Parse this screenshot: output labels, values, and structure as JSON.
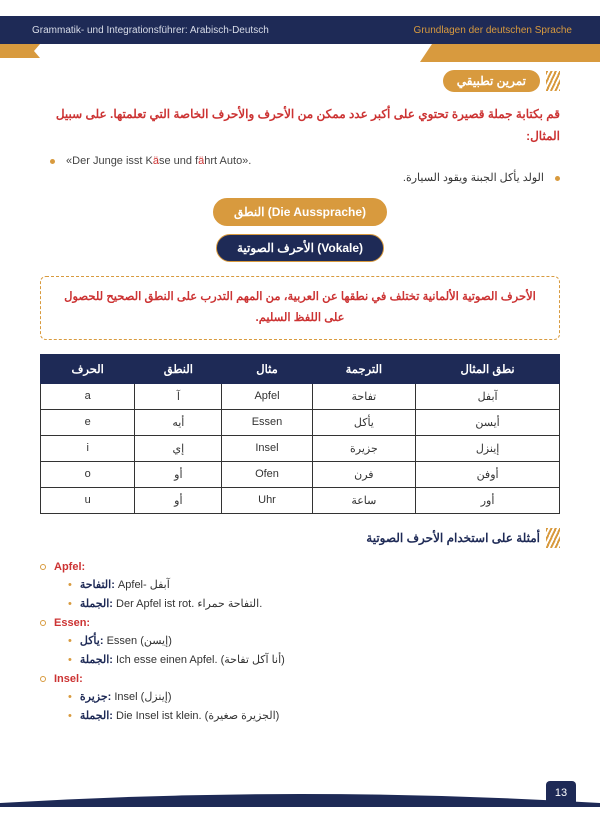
{
  "header": {
    "left": "Grammatik- und Integrationsführer: Arabisch-Deutsch",
    "right": "Grundlagen der deutschen Sprache"
  },
  "sections": {
    "exercise": "تمرين تطبيقي",
    "examples": "أمثلة على استخدام الأحرف الصوتية"
  },
  "instruction": "قم بكتابة جملة قصيرة تحتوي على أكبر عدد ممكن من الأحرف والأحرف الخاصة التي تعلمتها. على سبيل المثال:",
  "example_ar": "الولد يأكل الجبنة ويقود السيارة.",
  "chips": {
    "pronunciation": "النطق (Die Aussprache)",
    "vowels": "الأحرف الصوتية (Vokale)"
  },
  "info_box": "الأحرف الصوتية الألمانية تختلف في نطقها عن العربية، من المهم التدرب على النطق الصحيح للحصول على اللفظ السليم.",
  "table": {
    "headers": [
      "الحرف",
      "النطق",
      "مثال",
      "الترجمة",
      "نطق المثال"
    ],
    "rows": [
      [
        "a",
        "آ",
        "Apfel",
        "تفاحة",
        "آبفل"
      ],
      [
        "e",
        "أيه",
        "Essen",
        "يأكل",
        "أيسن"
      ],
      [
        "i",
        "إي",
        "Insel",
        "جزيرة",
        "إينزل"
      ],
      [
        "o",
        "أو",
        "Ofen",
        "فرن",
        "أوفن"
      ],
      [
        "u",
        "أو",
        "Uhr",
        "ساعة",
        "أور"
      ]
    ]
  },
  "examples": [
    {
      "word": "Apfel",
      "lines": [
        "التفاحة: Apfel- آبفل",
        "الجملة: Der Apfel ist rot. التفاحة حمراء."
      ]
    },
    {
      "word": "Essen",
      "lines": [
        "يأكل: Essen (إيسن)",
        "الجملة: Ich esse einen Apfel. (أنا آكل تفاحة)"
      ]
    },
    {
      "word": "Insel",
      "lines": [
        "جزيرة: Insel (إينزل)",
        "الجملة: Die Insel ist klein. (الجزيرة صغيرة)"
      ]
    }
  ],
  "page_number": "13",
  "colors": {
    "navy": "#1e2a56",
    "orange": "#d89a3e",
    "red": "#c33",
    "text": "#333333",
    "white": "#ffffff"
  }
}
